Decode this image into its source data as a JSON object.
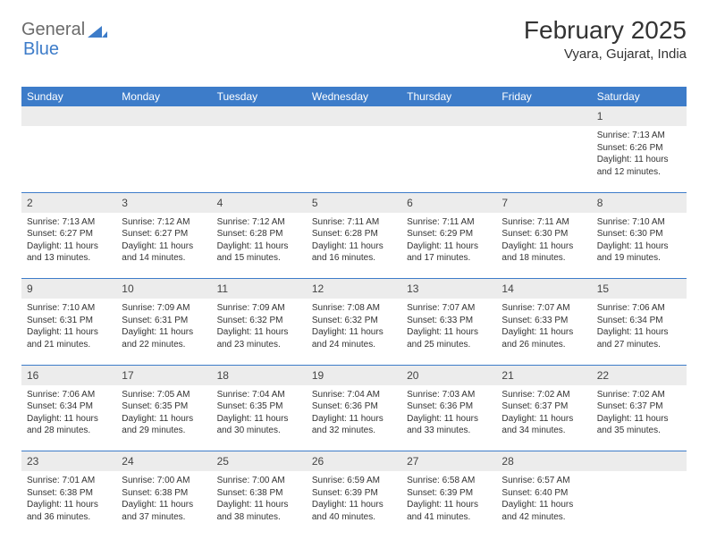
{
  "logo": {
    "text1": "General",
    "text2": "Blue"
  },
  "title": "February 2025",
  "location": "Vyara, Gujarat, India",
  "colors": {
    "header_bg": "#3d7cc9",
    "header_text": "#ffffff",
    "daynum_bg": "#ececec",
    "rule": "#3d7cc9",
    "body_text": "#333333",
    "logo_gray": "#6b6b6b",
    "logo_blue": "#3d7cc9"
  },
  "weekdays": [
    "Sunday",
    "Monday",
    "Tuesday",
    "Wednesday",
    "Thursday",
    "Friday",
    "Saturday"
  ],
  "weeks": [
    {
      "nums": [
        "",
        "",
        "",
        "",
        "",
        "",
        "1"
      ],
      "cells": [
        "",
        "",
        "",
        "",
        "",
        "",
        "Sunrise: 7:13 AM\nSunset: 6:26 PM\nDaylight: 11 hours and 12 minutes."
      ]
    },
    {
      "nums": [
        "2",
        "3",
        "4",
        "5",
        "6",
        "7",
        "8"
      ],
      "cells": [
        "Sunrise: 7:13 AM\nSunset: 6:27 PM\nDaylight: 11 hours and 13 minutes.",
        "Sunrise: 7:12 AM\nSunset: 6:27 PM\nDaylight: 11 hours and 14 minutes.",
        "Sunrise: 7:12 AM\nSunset: 6:28 PM\nDaylight: 11 hours and 15 minutes.",
        "Sunrise: 7:11 AM\nSunset: 6:28 PM\nDaylight: 11 hours and 16 minutes.",
        "Sunrise: 7:11 AM\nSunset: 6:29 PM\nDaylight: 11 hours and 17 minutes.",
        "Sunrise: 7:11 AM\nSunset: 6:30 PM\nDaylight: 11 hours and 18 minutes.",
        "Sunrise: 7:10 AM\nSunset: 6:30 PM\nDaylight: 11 hours and 19 minutes."
      ]
    },
    {
      "nums": [
        "9",
        "10",
        "11",
        "12",
        "13",
        "14",
        "15"
      ],
      "cells": [
        "Sunrise: 7:10 AM\nSunset: 6:31 PM\nDaylight: 11 hours and 21 minutes.",
        "Sunrise: 7:09 AM\nSunset: 6:31 PM\nDaylight: 11 hours and 22 minutes.",
        "Sunrise: 7:09 AM\nSunset: 6:32 PM\nDaylight: 11 hours and 23 minutes.",
        "Sunrise: 7:08 AM\nSunset: 6:32 PM\nDaylight: 11 hours and 24 minutes.",
        "Sunrise: 7:07 AM\nSunset: 6:33 PM\nDaylight: 11 hours and 25 minutes.",
        "Sunrise: 7:07 AM\nSunset: 6:33 PM\nDaylight: 11 hours and 26 minutes.",
        "Sunrise: 7:06 AM\nSunset: 6:34 PM\nDaylight: 11 hours and 27 minutes."
      ]
    },
    {
      "nums": [
        "16",
        "17",
        "18",
        "19",
        "20",
        "21",
        "22"
      ],
      "cells": [
        "Sunrise: 7:06 AM\nSunset: 6:34 PM\nDaylight: 11 hours and 28 minutes.",
        "Sunrise: 7:05 AM\nSunset: 6:35 PM\nDaylight: 11 hours and 29 minutes.",
        "Sunrise: 7:04 AM\nSunset: 6:35 PM\nDaylight: 11 hours and 30 minutes.",
        "Sunrise: 7:04 AM\nSunset: 6:36 PM\nDaylight: 11 hours and 32 minutes.",
        "Sunrise: 7:03 AM\nSunset: 6:36 PM\nDaylight: 11 hours and 33 minutes.",
        "Sunrise: 7:02 AM\nSunset: 6:37 PM\nDaylight: 11 hours and 34 minutes.",
        "Sunrise: 7:02 AM\nSunset: 6:37 PM\nDaylight: 11 hours and 35 minutes."
      ]
    },
    {
      "nums": [
        "23",
        "24",
        "25",
        "26",
        "27",
        "28",
        ""
      ],
      "cells": [
        "Sunrise: 7:01 AM\nSunset: 6:38 PM\nDaylight: 11 hours and 36 minutes.",
        "Sunrise: 7:00 AM\nSunset: 6:38 PM\nDaylight: 11 hours and 37 minutes.",
        "Sunrise: 7:00 AM\nSunset: 6:38 PM\nDaylight: 11 hours and 38 minutes.",
        "Sunrise: 6:59 AM\nSunset: 6:39 PM\nDaylight: 11 hours and 40 minutes.",
        "Sunrise: 6:58 AM\nSunset: 6:39 PM\nDaylight: 11 hours and 41 minutes.",
        "Sunrise: 6:57 AM\nSunset: 6:40 PM\nDaylight: 11 hours and 42 minutes.",
        ""
      ]
    }
  ]
}
